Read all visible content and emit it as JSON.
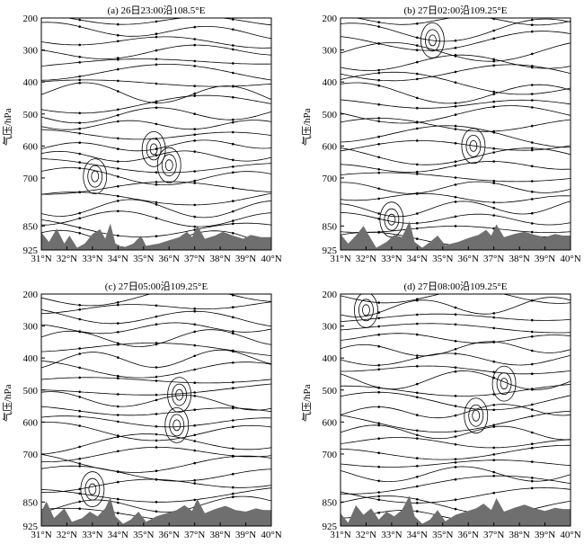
{
  "chart_data": [
    {
      "type": "streamline",
      "title": "(a) 26日23:00沿108.5°E",
      "ylabel": "气压/hPa",
      "x_ticks": [
        "31°N",
        "32°N",
        "33°N",
        "34°N",
        "35°N",
        "36°N",
        "37°N",
        "38°N",
        "39°N",
        "40°N"
      ],
      "x_range": [
        31,
        40
      ],
      "y_ticks": [
        200,
        300,
        400,
        500,
        600,
        700,
        850,
        925
      ],
      "y_range_hpa": [
        200,
        925
      ],
      "terrain": [
        [
          31.0,
          870
        ],
        [
          31.3,
          900
        ],
        [
          31.6,
          858
        ],
        [
          31.9,
          905
        ],
        [
          32.1,
          880
        ],
        [
          32.4,
          918
        ],
        [
          32.7,
          905
        ],
        [
          33.0,
          875
        ],
        [
          33.3,
          860
        ],
        [
          33.5,
          890
        ],
        [
          33.7,
          842
        ],
        [
          33.9,
          905
        ],
        [
          34.2,
          918
        ],
        [
          34.6,
          905
        ],
        [
          34.9,
          880
        ],
        [
          35.1,
          912
        ],
        [
          35.6,
          905
        ],
        [
          36.0,
          895
        ],
        [
          36.4,
          885
        ],
        [
          36.7,
          868
        ],
        [
          36.9,
          885
        ],
        [
          37.1,
          848
        ],
        [
          37.4,
          890
        ],
        [
          37.8,
          880
        ],
        [
          38.1,
          868
        ],
        [
          38.5,
          880
        ],
        [
          38.9,
          890
        ],
        [
          39.2,
          878
        ],
        [
          39.6,
          885
        ],
        [
          40.0,
          885
        ]
      ],
      "vortices": [
        [
          36.0,
          660
        ],
        [
          35.4,
          610
        ],
        [
          33.1,
          695
        ]
      ]
    },
    {
      "type": "streamline",
      "title": "(b) 27日02:00沿109.25°E",
      "ylabel": "气压/hPa",
      "x_ticks": [
        "31°N",
        "32°N",
        "33°N",
        "34°N",
        "35°N",
        "36°N",
        "37°N",
        "38°N",
        "39°N",
        "40°N"
      ],
      "x_range": [
        31,
        40
      ],
      "y_ticks": [
        200,
        300,
        400,
        500,
        600,
        700,
        850,
        925
      ],
      "y_range_hpa": [
        200,
        925
      ],
      "terrain": [
        [
          31.0,
          875
        ],
        [
          31.3,
          905
        ],
        [
          31.6,
          880
        ],
        [
          31.9,
          850
        ],
        [
          32.1,
          878
        ],
        [
          32.4,
          918
        ],
        [
          32.8,
          900
        ],
        [
          33.1,
          878
        ],
        [
          33.4,
          885
        ],
        [
          33.7,
          835
        ],
        [
          33.9,
          900
        ],
        [
          34.2,
          918
        ],
        [
          34.5,
          900
        ],
        [
          34.8,
          880
        ],
        [
          35.1,
          910
        ],
        [
          35.6,
          900
        ],
        [
          36.0,
          888
        ],
        [
          36.4,
          878
        ],
        [
          36.7,
          862
        ],
        [
          36.9,
          880
        ],
        [
          37.1,
          845
        ],
        [
          37.4,
          885
        ],
        [
          37.8,
          875
        ],
        [
          38.2,
          868
        ],
        [
          38.6,
          878
        ],
        [
          39.0,
          885
        ],
        [
          39.4,
          875
        ],
        [
          39.7,
          880
        ],
        [
          40.0,
          880
        ]
      ],
      "vortices": [
        [
          36.2,
          600
        ],
        [
          33.0,
          830
        ],
        [
          34.6,
          270
        ]
      ]
    },
    {
      "type": "streamline",
      "title": "(c) 27日05:00沿109.25°E",
      "ylabel": "气压/hPa",
      "x_ticks": [
        "31°N",
        "32°N",
        "33°N",
        "34°N",
        "35°N",
        "36°N",
        "37°N",
        "38°N",
        "39°N",
        "40°N"
      ],
      "x_range": [
        31,
        40
      ],
      "y_ticks": [
        200,
        300,
        400,
        500,
        600,
        700,
        850,
        925
      ],
      "y_range_hpa": [
        200,
        925
      ],
      "terrain": [
        [
          31.0,
          880
        ],
        [
          31.2,
          848
        ],
        [
          31.5,
          900
        ],
        [
          31.9,
          870
        ],
        [
          32.2,
          912
        ],
        [
          32.6,
          900
        ],
        [
          32.9,
          880
        ],
        [
          33.2,
          895
        ],
        [
          33.5,
          870
        ],
        [
          33.7,
          835
        ],
        [
          33.9,
          895
        ],
        [
          34.2,
          918
        ],
        [
          34.5,
          905
        ],
        [
          34.8,
          880
        ],
        [
          35.1,
          912
        ],
        [
          35.5,
          895
        ],
        [
          35.9,
          885
        ],
        [
          36.3,
          875
        ],
        [
          36.6,
          860
        ],
        [
          36.9,
          878
        ],
        [
          37.1,
          840
        ],
        [
          37.4,
          885
        ],
        [
          37.8,
          872
        ],
        [
          38.2,
          862
        ],
        [
          38.6,
          875
        ],
        [
          39.0,
          880
        ],
        [
          39.4,
          870
        ],
        [
          39.7,
          875
        ],
        [
          40.0,
          875
        ]
      ],
      "vortices": [
        [
          36.3,
          610
        ],
        [
          36.4,
          515
        ],
        [
          33.0,
          810
        ]
      ]
    },
    {
      "type": "streamline",
      "title": "(d) 27日08:00沿109.25°E",
      "ylabel": "气压/hPa",
      "x_ticks": [
        "31°N",
        "32°N",
        "33°N",
        "34°N",
        "35°N",
        "36°N",
        "37°N",
        "38°N",
        "39°N",
        "40°N"
      ],
      "x_range": [
        31,
        40
      ],
      "y_ticks": [
        200,
        300,
        400,
        500,
        600,
        700,
        850,
        925
      ],
      "y_range_hpa": [
        200,
        925
      ],
      "terrain": [
        [
          31.0,
          885
        ],
        [
          31.3,
          915
        ],
        [
          31.6,
          860
        ],
        [
          31.9,
          890
        ],
        [
          32.2,
          870
        ],
        [
          32.5,
          905
        ],
        [
          32.8,
          880
        ],
        [
          33.1,
          895
        ],
        [
          33.4,
          875
        ],
        [
          33.7,
          830
        ],
        [
          33.9,
          895
        ],
        [
          34.2,
          918
        ],
        [
          34.5,
          905
        ],
        [
          34.8,
          875
        ],
        [
          35.1,
          910
        ],
        [
          35.5,
          890
        ],
        [
          35.9,
          880
        ],
        [
          36.3,
          870
        ],
        [
          36.6,
          855
        ],
        [
          36.9,
          875
        ],
        [
          37.1,
          838
        ],
        [
          37.4,
          880
        ],
        [
          37.8,
          868
        ],
        [
          38.2,
          858
        ],
        [
          38.6,
          870
        ],
        [
          39.0,
          878
        ],
        [
          39.4,
          868
        ],
        [
          39.7,
          872
        ],
        [
          40.0,
          872
        ]
      ],
      "vortices": [
        [
          37.4,
          480
        ],
        [
          36.3,
          580
        ],
        [
          32.0,
          250
        ]
      ]
    }
  ]
}
